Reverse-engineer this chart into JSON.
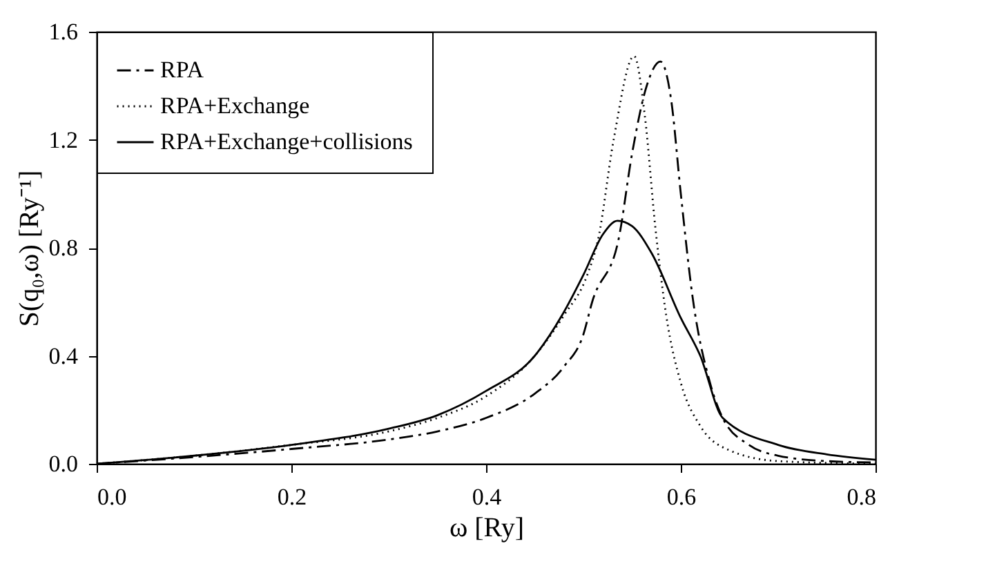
{
  "chart_data": {
    "type": "line",
    "xlabel": "ω  [Ry]",
    "ylabel": "S(q₀,ω) [Ry⁻¹]",
    "xlim": [
      0,
      0.8
    ],
    "ylim": [
      0,
      1.6
    ],
    "xticks": [
      {
        "value": 0,
        "label": "0.0"
      },
      {
        "value": 0.2,
        "label": "0.2"
      },
      {
        "value": 0.4,
        "label": "0.4"
      },
      {
        "value": 0.6,
        "label": "0.6"
      },
      {
        "value": 0.8,
        "label": "0.8"
      }
    ],
    "yticks": [
      {
        "value": 0,
        "label": "0.0"
      },
      {
        "value": 0.4,
        "label": "0.4"
      },
      {
        "value": 0.8,
        "label": "0.8"
      },
      {
        "value": 1.2,
        "label": "1.2"
      },
      {
        "value": 1.6,
        "label": "1.6"
      }
    ],
    "grid": false,
    "legend": "top left",
    "marker": "none",
    "series": [
      {
        "name": "RPA",
        "color": "#000000",
        "line_style": "dashdot",
        "x": [
          0,
          0.1,
          0.2,
          0.3,
          0.35,
          0.4,
          0.45,
          0.48,
          0.5,
          0.509,
          0.536,
          0.55,
          0.565,
          0.579,
          0.59,
          0.6,
          0.612,
          0.63,
          0.643,
          0.67,
          0.7,
          0.75,
          0.8
        ],
        "values": [
          0,
          0.025,
          0.055,
          0.09,
          0.12,
          0.17,
          0.26,
          0.36,
          0.48,
          0.6,
          0.83,
          1.15,
          1.4,
          1.49,
          1.35,
          1.0,
          0.62,
          0.3,
          0.17,
          0.07,
          0.03,
          0.01,
          0.005
        ]
      },
      {
        "name": "RPA+Exchange",
        "color": "#000000",
        "line_style": "dotted",
        "x": [
          0,
          0.1,
          0.2,
          0.3,
          0.35,
          0.4,
          0.45,
          0.48,
          0.504,
          0.515,
          0.531,
          0.552,
          0.563,
          0.574,
          0.585,
          0.6,
          0.62,
          0.65,
          0.7,
          0.8
        ],
        "values": [
          0,
          0.03,
          0.07,
          0.12,
          0.17,
          0.25,
          0.4,
          0.55,
          0.7,
          0.83,
          1.2,
          1.51,
          1.29,
          0.87,
          0.55,
          0.3,
          0.14,
          0.05,
          0.01,
          0
        ]
      },
      {
        "name": "RPA+Exchange+collisions",
        "color": "#000000",
        "line_style": "solid",
        "x": [
          0,
          0.1,
          0.2,
          0.3,
          0.35,
          0.4,
          0.45,
          0.478,
          0.5,
          0.52,
          0.535,
          0.55,
          0.57,
          0.6,
          0.62,
          0.643,
          0.7,
          0.75,
          0.8
        ],
        "values": [
          0,
          0.03,
          0.07,
          0.13,
          0.18,
          0.27,
          0.4,
          0.55,
          0.7,
          0.85,
          0.9,
          0.88,
          0.78,
          0.54,
          0.4,
          0.17,
          0.07,
          0.035,
          0.015
        ]
      }
    ]
  }
}
